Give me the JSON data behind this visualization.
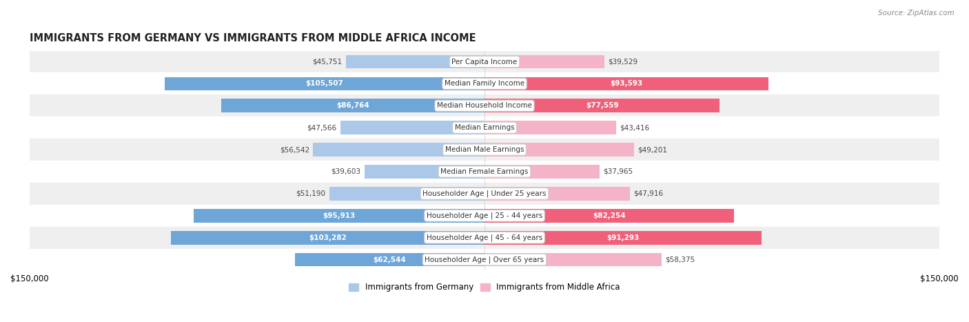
{
  "title": "IMMIGRANTS FROM GERMANY VS IMMIGRANTS FROM MIDDLE AFRICA INCOME",
  "source": "Source: ZipAtlas.com",
  "categories": [
    "Per Capita Income",
    "Median Family Income",
    "Median Household Income",
    "Median Earnings",
    "Median Male Earnings",
    "Median Female Earnings",
    "Householder Age | Under 25 years",
    "Householder Age | 25 - 44 years",
    "Householder Age | 45 - 64 years",
    "Householder Age | Over 65 years"
  ],
  "germany_values": [
    45751,
    105507,
    86764,
    47566,
    56542,
    39603,
    51190,
    95913,
    103282,
    62544
  ],
  "africa_values": [
    39529,
    93593,
    77559,
    43416,
    49201,
    37965,
    47916,
    82254,
    91293,
    58375
  ],
  "germany_labels": [
    "$45,751",
    "$105,507",
    "$86,764",
    "$47,566",
    "$56,542",
    "$39,603",
    "$51,190",
    "$95,913",
    "$103,282",
    "$62,544"
  ],
  "africa_labels": [
    "$39,529",
    "$93,593",
    "$77,559",
    "$43,416",
    "$49,201",
    "$37,965",
    "$47,916",
    "$82,254",
    "$91,293",
    "$58,375"
  ],
  "germany_color_light": "#abc8e8",
  "germany_color_dark": "#6ea6d8",
  "africa_color_light": "#f5b3c8",
  "africa_color_dark": "#f0607a",
  "max_value": 150000,
  "bar_height": 0.62,
  "bg_row_even": "#efefef",
  "bg_row_odd": "#ffffff",
  "legend_germany": "Immigrants from Germany",
  "legend_africa": "Immigrants from Middle Africa",
  "dark_threshold": 60000
}
